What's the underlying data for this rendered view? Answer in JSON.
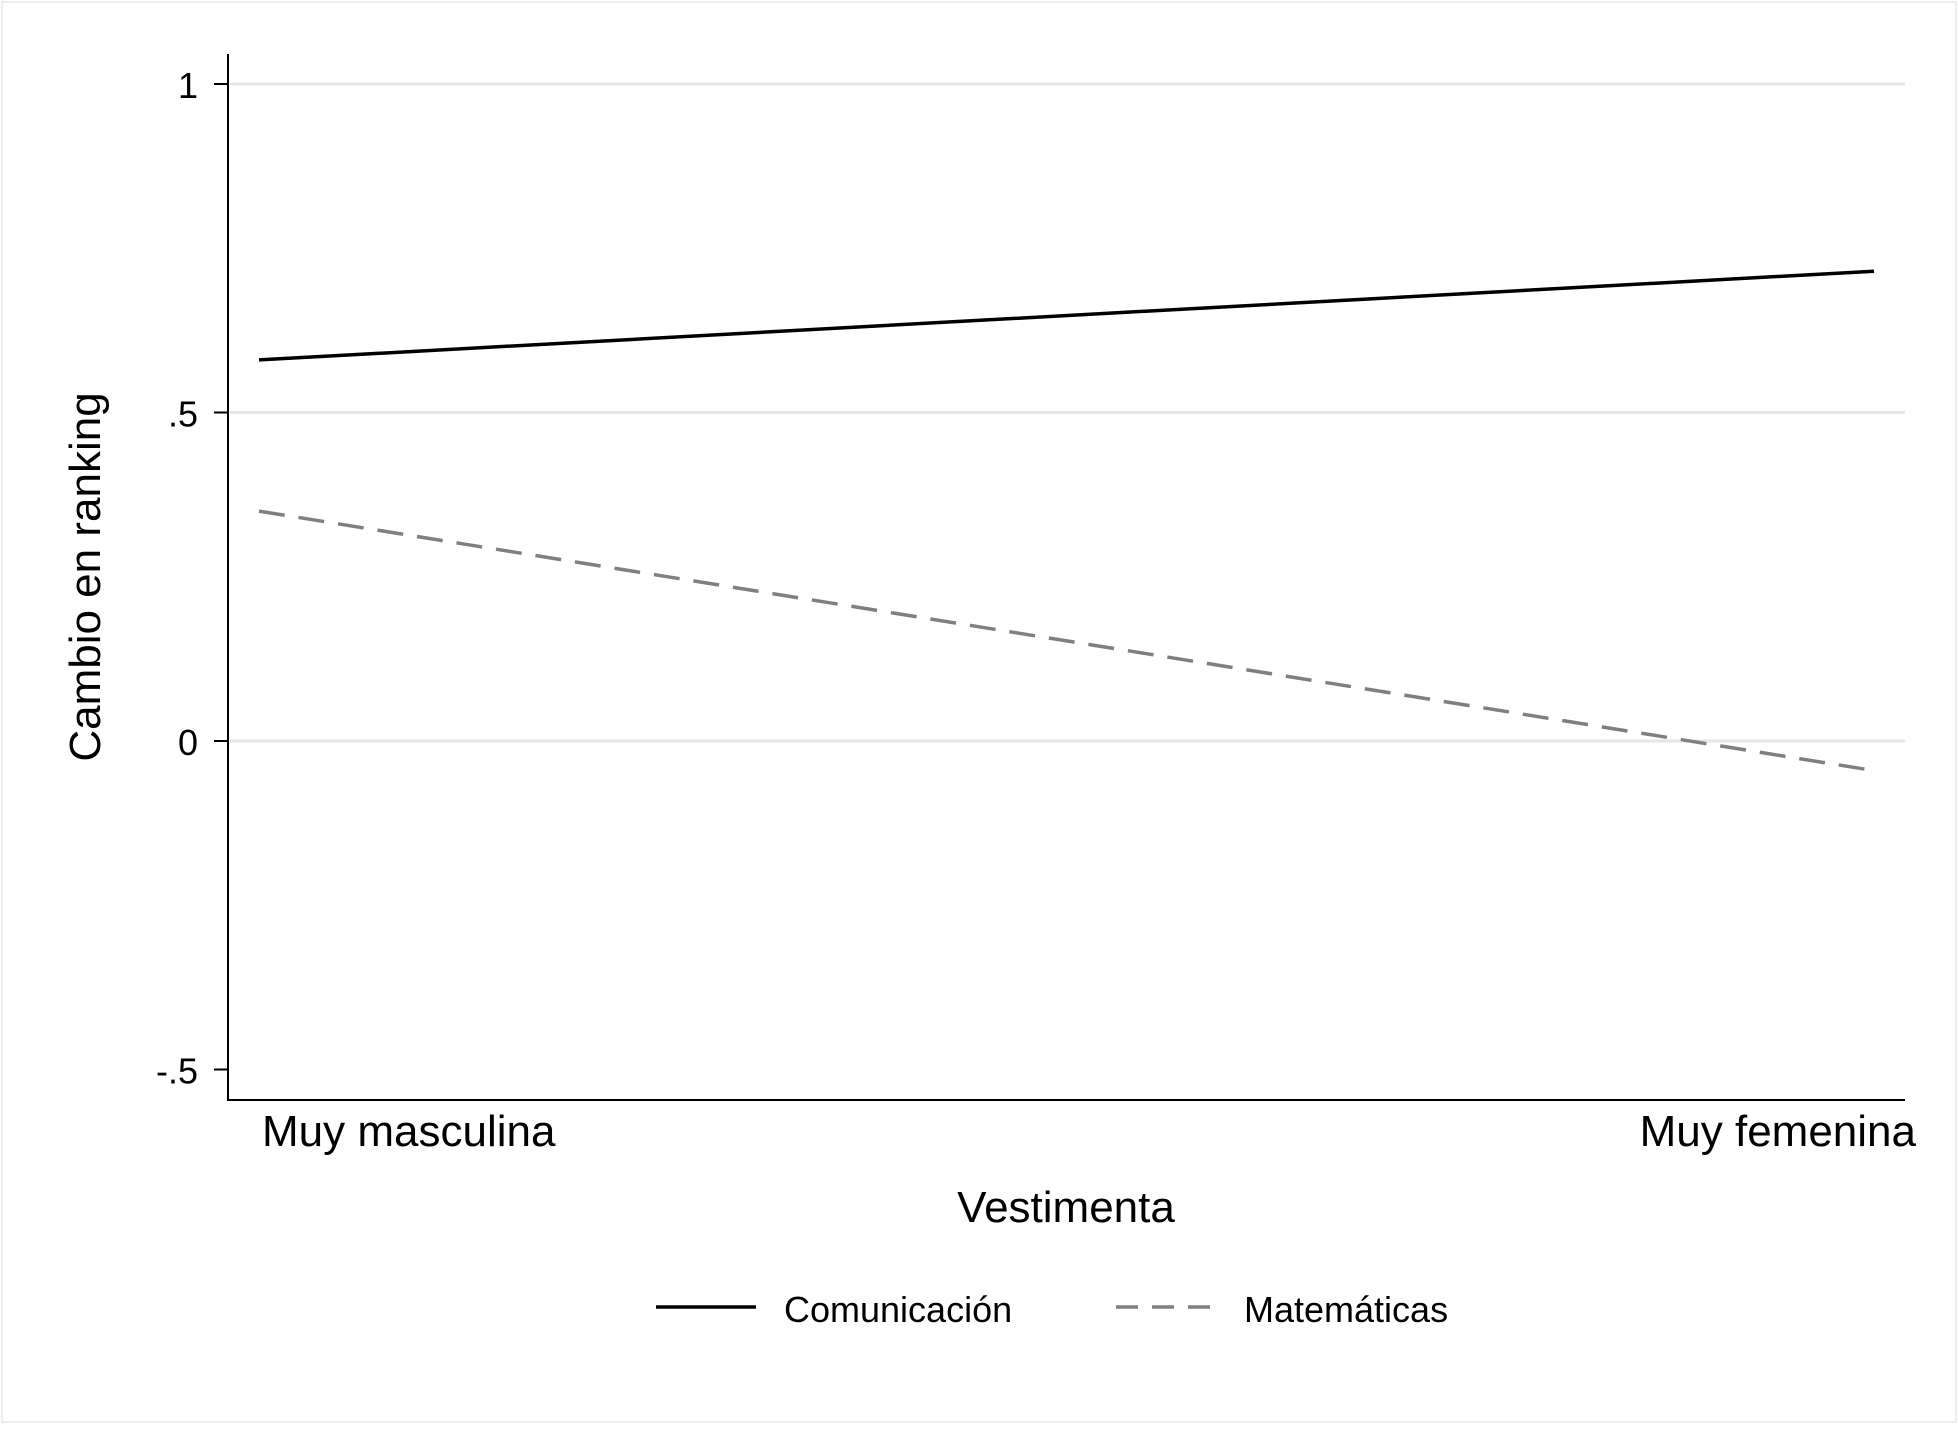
{
  "chart_data": {
    "type": "line",
    "title": "",
    "xlabel": "Vestimenta",
    "ylabel": "Cambio en ranking",
    "x": [
      0,
      1
    ],
    "xlim": [
      0,
      1
    ],
    "x_tick_labels": [
      "Muy masculina",
      "Muy femenina"
    ],
    "ylim": [
      -0.55,
      1.05
    ],
    "y_ticks": [
      1,
      0.5,
      0,
      -0.5
    ],
    "y_tick_labels": [
      "1",
      ".5",
      "0",
      "-.5"
    ],
    "grid": "horizontal",
    "legend_position": "bottom",
    "series": [
      {
        "name": "Comunicación",
        "values": [
          0.58,
          0.715
        ],
        "color": "#000000",
        "style": "solid"
      },
      {
        "name": "Matemáticas",
        "values": [
          0.35,
          -0.045
        ],
        "color": "#7f7f7f",
        "style": "dashed"
      }
    ]
  }
}
